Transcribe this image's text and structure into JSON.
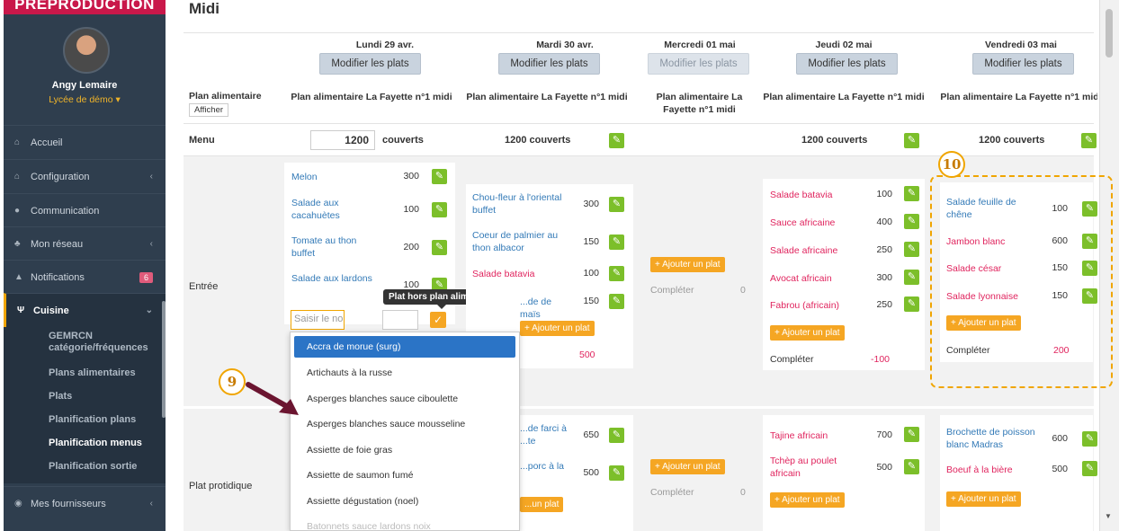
{
  "sidebar": {
    "brand": "PREPRODUCTION",
    "user_name": "Angy Lemaire",
    "school": "Lycée de démo ▾",
    "items": [
      {
        "label": "Accueil",
        "icon": "home-icon"
      },
      {
        "label": "Configuration",
        "icon": "bank-icon"
      },
      {
        "label": "Communication",
        "icon": "chat-icon"
      },
      {
        "label": "Mon réseau",
        "icon": "network-icon"
      },
      {
        "label": "Notifications",
        "icon": "bell-icon",
        "badge": "6"
      },
      {
        "label": "Cuisine",
        "icon": "cutlery-icon"
      },
      {
        "label": "Mes fournisseurs",
        "icon": "eye-icon"
      }
    ],
    "sub_items": [
      "GEMRCN catégorie/fréquences",
      "Plans alimentaires",
      "Plats",
      "Planification plans",
      "Planification menus",
      "Planification sortie"
    ]
  },
  "main": {
    "title": "Midi",
    "plan_label": "Plan alimentaire",
    "afficher": "Afficher",
    "menu_label": "Menu",
    "entree_label": "Entrée",
    "plat_label": "Plat protidique",
    "couverts_value": "1200",
    "couverts_word": "couverts",
    "couverts_full": "1200 couverts",
    "modify_label": "Modifier les plats",
    "add_label": "Ajouter un plat",
    "complete_label": "Compléter",
    "plan_name": "Plan alimentaire La Fayette n°1 midi",
    "days": [
      "Lundi 29 avr.",
      "Mardi 30 avr.",
      "Mercredi 01 mai",
      "Jeudi 02 mai",
      "Vendredi 03 mai"
    ]
  },
  "entree": {
    "lundi": [
      {
        "name": "Melon",
        "qty": "300"
      },
      {
        "name": "Salade aux cacahuètes",
        "qty": "100"
      },
      {
        "name": "Tomate au thon buffet",
        "qty": "200"
      },
      {
        "name": "Salade aux lardons",
        "qty": "100"
      }
    ],
    "mardi": [
      {
        "name": "Chou-fleur à l'oriental buffet",
        "qty": "300"
      },
      {
        "name": "Coeur de palmier au thon albacor",
        "qty": "150"
      },
      {
        "name": "Salade batavia",
        "qty": "100"
      },
      {
        "name": "...de de maïs",
        "qty": "150"
      }
    ],
    "mardi_complete": "500",
    "mercredi_complete": "0",
    "jeudi": [
      {
        "name": "Salade batavia",
        "qty": "100"
      },
      {
        "name": "Sauce africaine",
        "qty": "400"
      },
      {
        "name": "Salade africaine",
        "qty": "250"
      },
      {
        "name": "Avocat africain",
        "qty": "300"
      },
      {
        "name": "Fabrou (africain)",
        "qty": "250"
      }
    ],
    "jeudi_complete": "-100",
    "vendredi": [
      {
        "name": "Salade feuille de chêne",
        "qty": "100"
      },
      {
        "name": "Jambon blanc",
        "qty": "600"
      },
      {
        "name": "Salade césar",
        "qty": "150"
      },
      {
        "name": "Salade lyonnaise",
        "qty": "150"
      }
    ],
    "vendredi_complete": "200"
  },
  "plat": {
    "mardi": [
      {
        "name": "...de farci à ...te",
        "qty": "650"
      },
      {
        "name": "...porc à la",
        "qty": "500"
      }
    ],
    "mardi_add": "...un plat",
    "mercredi_complete": "0",
    "jeudi": [
      {
        "name": "Tajine africain",
        "qty": "700"
      },
      {
        "name": "Tchèp au poulet africain",
        "qty": "500"
      }
    ],
    "vendredi": [
      {
        "name": "Brochette de poisson blanc Madras",
        "qty": "600"
      },
      {
        "name": "Boeuf à la bière",
        "qty": "500"
      }
    ]
  },
  "input": {
    "placeholder": "Saisir le nom du",
    "tooltip": "Plat hors plan alimentaire"
  },
  "dropdown": [
    "Accra de morue (surg)",
    "Artichauts à la russe",
    "Asperges blanches sauce ciboulette",
    "Asperges blanches sauce mousseline",
    "Assiette de foie gras",
    "Assiette de saumon fumé",
    "Assiette dégustation (noel)",
    "Batonnets sauce lardons noix"
  ],
  "callouts": {
    "nine": "9",
    "ten": "10"
  },
  "colors": {
    "sidebar": "#2f3e4e",
    "accent": "#f0a500",
    "green": "#7cbf2a",
    "link": "#337ab7",
    "red": "#e0245e",
    "brand": "#c9184a"
  }
}
